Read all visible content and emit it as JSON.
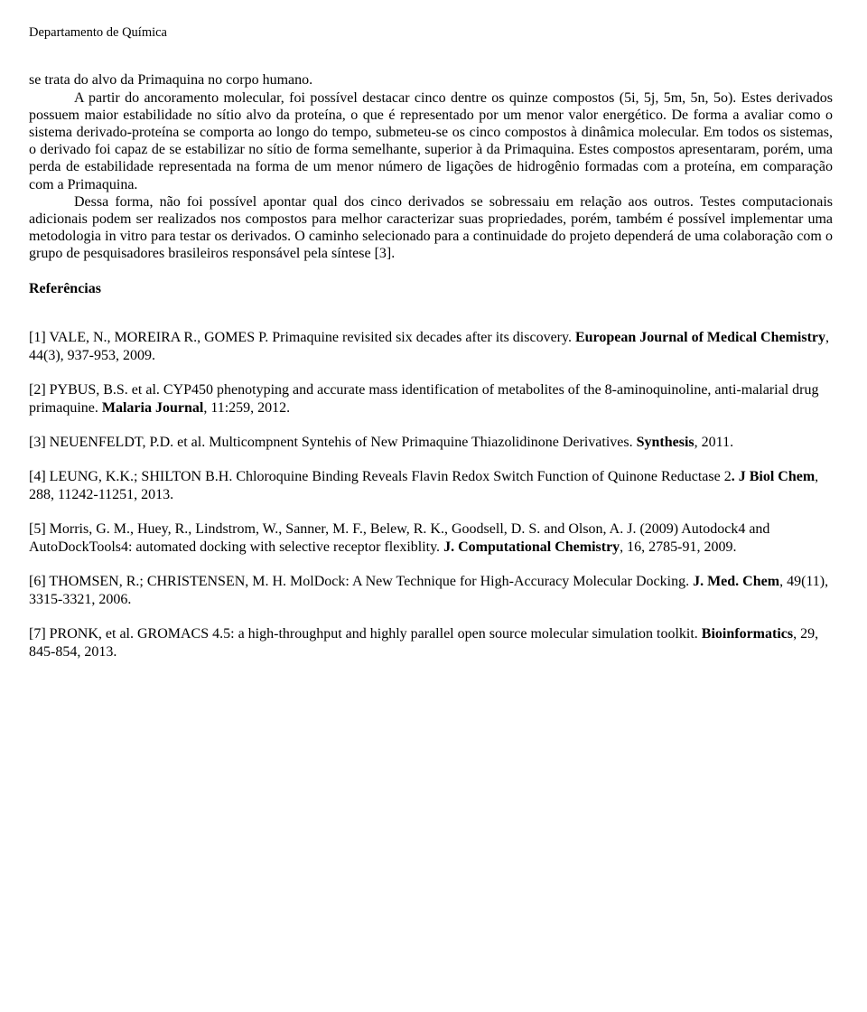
{
  "header": "Departamento de Química",
  "paragraph1_a": "se trata do alvo da Primaquina no corpo humano.",
  "paragraph1_b": "A partir do ancoramento molecular, foi possível destacar cinco dentre os quinze compostos (5i, 5j, 5m, 5n, 5o). Estes derivados possuem maior estabilidade no sítio alvo da proteína, o que é representado por um menor valor energético. De forma a avaliar como o sistema derivado-proteína se comporta ao longo do tempo, submeteu-se os cinco compostos à dinâmica molecular. Em todos os sistemas, o derivado foi capaz de se estabilizar no sítio de forma semelhante, superior à da Primaquina. Estes compostos apresentaram, porém, uma perda de estabilidade representada na forma de um menor número de ligações de hidrogênio formadas com a proteína, em comparação com a Primaquina.",
  "paragraph1_c": "Dessa forma, não foi possível apontar qual dos cinco derivados se sobressaiu em relação aos outros. Testes computacionais adicionais podem ser realizados nos compostos para melhor caracterizar suas propriedades, porém, também é possível implementar uma metodologia in vitro para testar os derivados. O caminho selecionado para a continuidade do projeto dependerá de uma colaboração com o grupo de pesquisadores brasileiros responsável pela síntese [3].",
  "references_heading": "Referências",
  "ref1_a": "[1] VALE, N., MOREIRA R., GOMES P. Primaquine revisited six decades after its discovery. ",
  "ref1_b": "European Journal of Medical Chemistry",
  "ref1_c": ", 44(3), 937-953, 2009.",
  "ref2_a": "[2] PYBUS, B.S. et al. CYP450 phenotyping and accurate mass identification of metabolites of the 8-aminoquinoline, anti-malarial drug primaquine. ",
  "ref2_b": "Malaria Journal",
  "ref2_c": ", 11:259, 2012.",
  "ref3_a": "[3] NEUENFELDT, P.D. et al. Multicompnent Syntehis of New Primaquine Thiazolidinone Derivatives. ",
  "ref3_b": "Synthesis",
  "ref3_c": ", 2011.",
  "ref4_a": "[4] LEUNG, K.K.; SHILTON B.H. Chloroquine Binding Reveals Flavin Redox Switch Function of Quinone Reductase 2",
  "ref4_b": ". J Biol Chem",
  "ref4_c": ", 288, 11242-11251, 2013.",
  "ref5_a": "[5] Morris, G. M., Huey, R., Lindstrom, W., Sanner, M. F., Belew, R. K., Goodsell, D. S. and Olson, A. J. (2009) Autodock4 and AutoDockTools4: automated docking with selective receptor flexiblity. ",
  "ref5_b": "J. Computational Chemistry",
  "ref5_c": ", 16, 2785-91, 2009.",
  "ref6_a": "[6] THOMSEN, R.; CHRISTENSEN, M. H. MolDock: A New Technique for High-Accuracy Molecular Docking. ",
  "ref6_b": "J. Med. Chem",
  "ref6_c": ", 49(11), 3315-3321, 2006.",
  "ref7_a": "[7] PRONK, et al. GROMACS 4.5: a high-throughput and highly parallel open source molecular simulation toolkit. ",
  "ref7_b": "Bioinformatics",
  "ref7_c": ", 29, 845-854, 2013."
}
